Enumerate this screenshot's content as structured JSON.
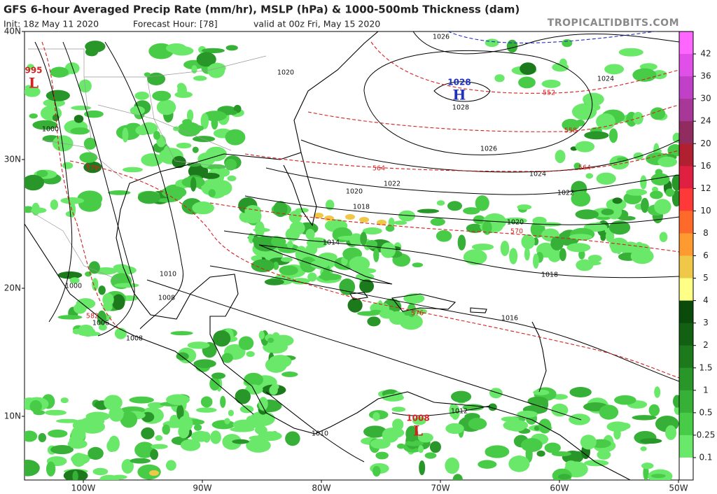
{
  "map": {
    "title": "GFS 6-hour Averaged Precip Rate (mm/hr), MSLP (hPa) & 1000-500mb Thickness (dam)",
    "init": "Init: 18z May 11 2020",
    "forecast_hour": "Forecast Hour: [78]",
    "valid": "valid at 00z Fri, May 15 2020",
    "site": "TROPICALTIDBITS.COM",
    "lat_labels": [
      "40N",
      "30N",
      "20N",
      "10N"
    ],
    "lon_labels": [
      "100W",
      "90W",
      "80W",
      "70W",
      "60W",
      "50W"
    ],
    "pressure_centers": [
      {
        "value": 995,
        "label": "L"
      },
      {
        "value": 1028,
        "label": "H"
      },
      {
        "value": 1008,
        "label": "L"
      }
    ],
    "isobar_labels": [
      1026,
      1020,
      1024,
      1028,
      1000,
      1026,
      1024,
      1022,
      1020,
      1022,
      1018,
      1020,
      1014,
      1010,
      1018,
      1000,
      1008,
      1006,
      1016,
      1008,
      1012,
      1010
    ],
    "thickness_labels": [
      552,
      558,
      576,
      564,
      564,
      570,
      582,
      576
    ],
    "colorbar": {
      "labels": [
        42,
        36,
        30,
        24,
        20,
        16,
        12,
        10,
        8,
        6,
        5,
        4,
        3,
        2,
        1.5,
        1,
        0.5,
        0.25,
        0.1
      ],
      "colors": [
        "#ff66ff",
        "#e050e8",
        "#c040c8",
        "#a83898",
        "#902c60",
        "#b02030",
        "#e02040",
        "#ff3838",
        "#ff6a2a",
        "#ff9a30",
        "#f0c848",
        "#ffff88",
        "#0a4a0a",
        "#126012",
        "#1c7a1c",
        "#289628",
        "#36b036",
        "#48cc48",
        "#6ae86a",
        "#ffffff"
      ]
    }
  }
}
